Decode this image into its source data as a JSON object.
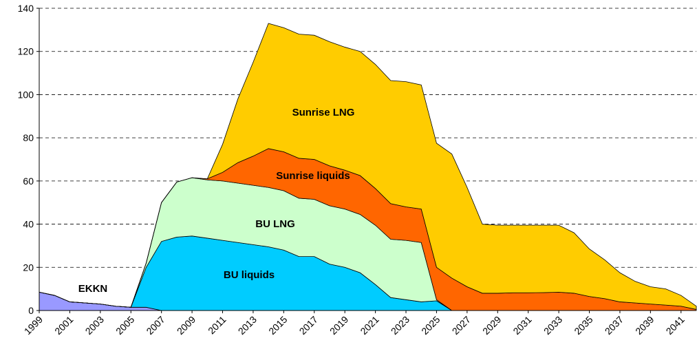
{
  "chart_data": {
    "type": "stacked_area",
    "x": [
      1999,
      2000,
      2001,
      2002,
      2003,
      2004,
      2005,
      2006,
      2007,
      2008,
      2009,
      2010,
      2011,
      2012,
      2013,
      2014,
      2015,
      2016,
      2017,
      2018,
      2019,
      2020,
      2021,
      2022,
      2023,
      2024,
      2025,
      2026,
      2027,
      2028,
      2029,
      2030,
      2031,
      2032,
      2033,
      2034,
      2035,
      2036,
      2037,
      2038,
      2039,
      2040,
      2041,
      2042
    ],
    "series": [
      {
        "name": "EKKN",
        "color": "#9999ff",
        "values": [
          8.5,
          7,
          4,
          3.5,
          3,
          2,
          1.5,
          1.5,
          0,
          0,
          0,
          0,
          0,
          0,
          0,
          0,
          0,
          0,
          0,
          0,
          0,
          0,
          0,
          0,
          0,
          0,
          0,
          0,
          0,
          0,
          0,
          0,
          0,
          0,
          0,
          0,
          0,
          0,
          0,
          0,
          0,
          0,
          0,
          0
        ]
      },
      {
        "name": "BU liquids",
        "color": "#00ccff",
        "values": [
          0,
          0,
          0,
          0,
          0,
          0,
          0,
          18.5,
          32,
          34,
          34.5,
          33.5,
          32.5,
          31.5,
          30.5,
          29.5,
          28,
          25,
          25,
          21.5,
          20,
          17.5,
          12,
          6,
          5,
          4,
          4.5,
          0,
          0,
          0,
          0,
          0,
          0,
          0,
          0,
          0,
          0,
          0,
          0,
          0,
          0,
          0,
          0,
          0
        ]
      },
      {
        "name": "BU LNG",
        "color": "#ccffcc",
        "values": [
          0,
          0,
          0,
          0,
          0,
          0,
          0,
          2,
          18,
          25.5,
          27,
          27,
          27.5,
          27.5,
          27.5,
          27.5,
          27.5,
          27,
          26.5,
          27,
          27,
          27,
          27.5,
          27,
          27.5,
          27.5,
          0.5,
          0,
          0,
          0,
          0,
          0,
          0,
          0,
          0,
          0,
          0,
          0,
          0,
          0,
          0,
          0,
          0,
          0
        ]
      },
      {
        "name": "Sunrise liquids",
        "color": "#ff6600",
        "values": [
          0,
          0,
          0,
          0,
          0,
          0,
          0,
          0,
          0,
          0,
          0,
          0.5,
          4,
          9.5,
          13.5,
          18,
          18,
          18.5,
          18.5,
          18.5,
          18,
          18,
          17,
          16.5,
          15.5,
          15.5,
          15,
          15,
          11,
          8,
          8,
          8.2,
          8.2,
          8.3,
          8.5,
          8,
          6.5,
          5.5,
          4,
          3.5,
          3,
          2.5,
          2,
          0.5
        ]
      },
      {
        "name": "Sunrise LNG",
        "color": "#ffcc00",
        "values": [
          0,
          0,
          0,
          0,
          0,
          0,
          0,
          0,
          0,
          0,
          0,
          0,
          13,
          29.5,
          43.5,
          58,
          57.5,
          57.5,
          57.5,
          57.5,
          57,
          57.5,
          57.5,
          57,
          58,
          57.5,
          57.5,
          57.5,
          46,
          32,
          31.5,
          31.3,
          31.3,
          31.2,
          31,
          28,
          22,
          18,
          13.5,
          10,
          8,
          7.5,
          5,
          1.5
        ]
      }
    ],
    "xlim": [
      1999,
      2042
    ],
    "xticks": [
      1999,
      2001,
      2003,
      2005,
      2007,
      2009,
      2011,
      2013,
      2015,
      2017,
      2019,
      2021,
      2023,
      2025,
      2027,
      2029,
      2031,
      2033,
      2035,
      2037,
      2039,
      2041
    ],
    "ylim": [
      0,
      140
    ],
    "yticks": [
      0,
      20,
      40,
      60,
      80,
      100,
      120,
      140
    ],
    "grid": true
  }
}
